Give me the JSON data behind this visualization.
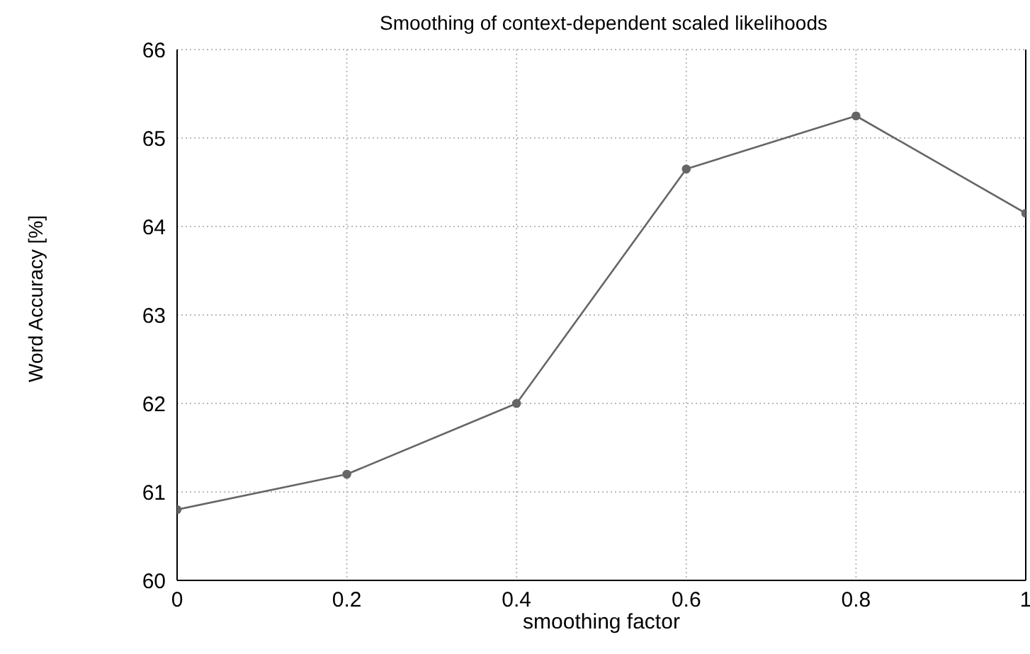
{
  "chart_data": {
    "type": "line",
    "title": "Smoothing of context-dependent scaled likelihoods",
    "xlabel": "smoothing factor",
    "ylabel": "Word Accuracy [%]",
    "x": [
      0,
      0.2,
      0.4,
      0.6,
      0.8,
      1
    ],
    "series": [
      {
        "color": "#666666",
        "values": [
          60.8,
          61.2,
          62.0,
          64.65,
          65.25,
          64.15
        ]
      }
    ],
    "xlim": [
      0,
      1
    ],
    "xticks": [
      0,
      0.2,
      0.4,
      0.6,
      0.8,
      1
    ],
    "ylim": [
      60,
      66
    ],
    "yticks": [
      60,
      61,
      62,
      63,
      64,
      65,
      66
    ],
    "grid": true,
    "marker": "circle",
    "line_style": "solid",
    "legend": false
  }
}
